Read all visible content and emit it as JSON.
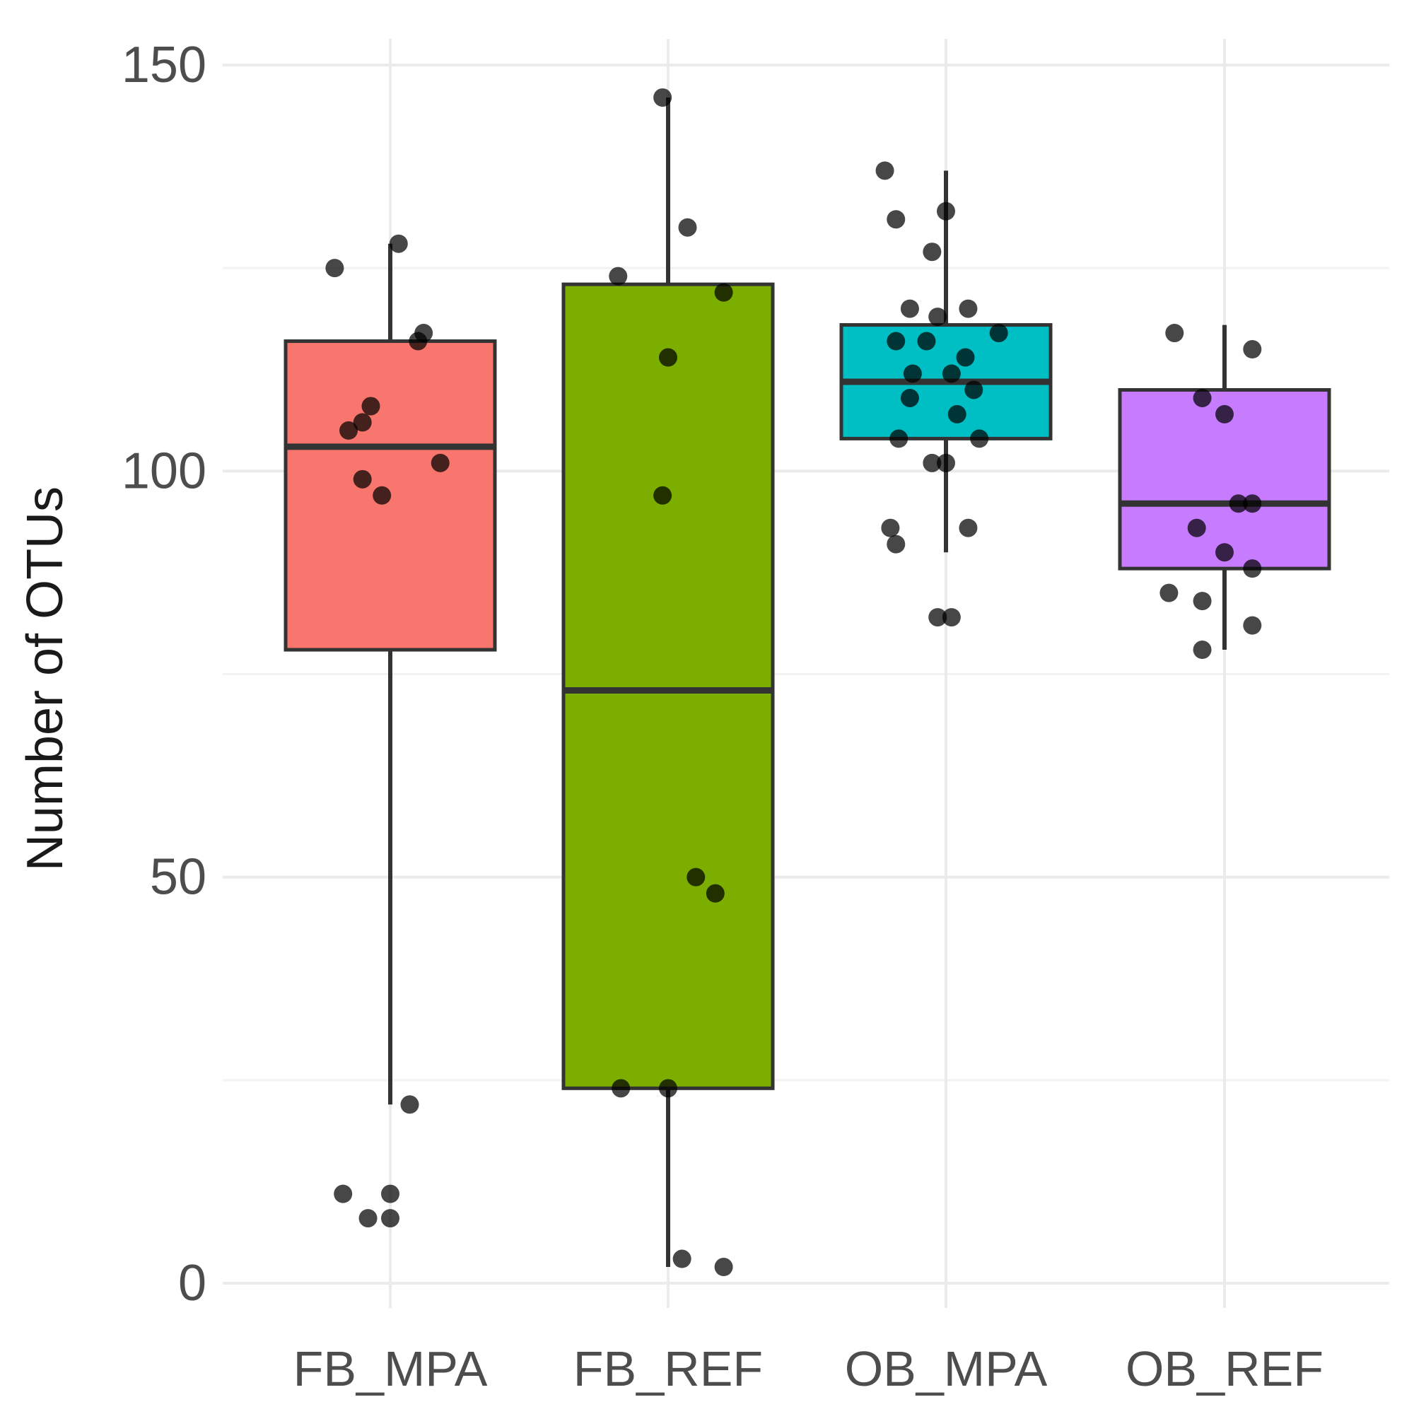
{
  "chart_data": {
    "type": "boxplot",
    "title": "",
    "xlabel": "",
    "ylabel": "Number of OTUs",
    "ylim": [
      0,
      150
    ],
    "y_ticks": [
      0,
      50,
      100,
      150
    ],
    "grid": true,
    "legend": "none",
    "categories": [
      "FB_MPA",
      "FB_REF",
      "OB_MPA",
      "OB_REF"
    ],
    "boxes": [
      {
        "category": "FB_MPA",
        "color": "#F8766D",
        "whisker_low": 22,
        "q1": 78,
        "median": 103,
        "q3": 116,
        "whisker_high": 128,
        "points": [
          [
            -0.2,
            125
          ],
          [
            0.03,
            128
          ],
          [
            0.1,
            116
          ],
          [
            0.12,
            117
          ],
          [
            -0.15,
            105
          ],
          [
            -0.1,
            106
          ],
          [
            -0.07,
            108
          ],
          [
            -0.1,
            99
          ],
          [
            -0.03,
            97
          ],
          [
            0.18,
            101
          ],
          [
            0.07,
            22
          ],
          [
            -0.17,
            11
          ],
          [
            0.0,
            11
          ],
          [
            -0.08,
            8
          ],
          [
            0.0,
            8
          ]
        ]
      },
      {
        "category": "FB_REF",
        "color": "#7CAE00",
        "whisker_low": 2,
        "q1": 24,
        "median": 73,
        "q3": 123,
        "whisker_high": 146,
        "points": [
          [
            -0.02,
            146
          ],
          [
            0.07,
            130
          ],
          [
            -0.18,
            124
          ],
          [
            0.2,
            122
          ],
          [
            0.0,
            114
          ],
          [
            -0.02,
            97
          ],
          [
            0.1,
            50
          ],
          [
            0.17,
            48
          ],
          [
            -0.17,
            24
          ],
          [
            0.0,
            24
          ],
          [
            0.05,
            3
          ],
          [
            0.2,
            2
          ]
        ]
      },
      {
        "category": "OB_MPA",
        "color": "#00BFC4",
        "whisker_low": 90,
        "q1": 104,
        "median": 111,
        "q3": 118,
        "whisker_high": 137,
        "points": [
          [
            -0.22,
            137
          ],
          [
            -0.18,
            131
          ],
          [
            0.0,
            132
          ],
          [
            -0.05,
            127
          ],
          [
            -0.13,
            120
          ],
          [
            0.08,
            120
          ],
          [
            -0.03,
            119
          ],
          [
            0.19,
            117
          ],
          [
            -0.18,
            116
          ],
          [
            -0.07,
            116
          ],
          [
            0.07,
            114
          ],
          [
            -0.12,
            112
          ],
          [
            0.02,
            112
          ],
          [
            0.1,
            110
          ],
          [
            -0.13,
            109
          ],
          [
            0.04,
            107
          ],
          [
            -0.17,
            104
          ],
          [
            0.12,
            104
          ],
          [
            -0.05,
            101
          ],
          [
            0.0,
            101
          ],
          [
            -0.2,
            93
          ],
          [
            -0.18,
            91
          ],
          [
            0.08,
            93
          ],
          [
            -0.03,
            82
          ],
          [
            0.02,
            82
          ]
        ]
      },
      {
        "category": "OB_REF",
        "color": "#C77CFF",
        "whisker_low": 78,
        "q1": 88,
        "median": 96,
        "q3": 110,
        "whisker_high": 118,
        "points": [
          [
            -0.18,
            117
          ],
          [
            0.1,
            115
          ],
          [
            -0.08,
            109
          ],
          [
            0.0,
            107
          ],
          [
            0.05,
            96
          ],
          [
            0.1,
            96
          ],
          [
            -0.1,
            93
          ],
          [
            0.0,
            90
          ],
          [
            -0.2,
            85
          ],
          [
            -0.08,
            84
          ],
          [
            0.1,
            88
          ],
          [
            0.1,
            81
          ],
          [
            -0.08,
            78
          ]
        ]
      }
    ]
  }
}
